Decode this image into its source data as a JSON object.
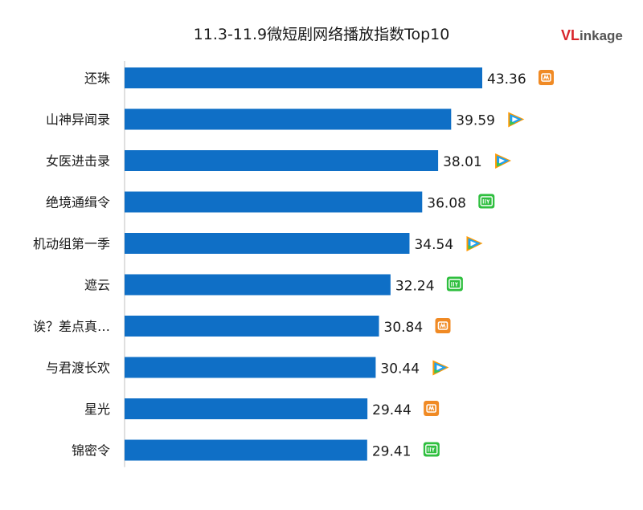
{
  "chart_data": {
    "type": "bar",
    "orientation": "horizontal",
    "title": "11.3-11.9微短剧网络播放指数Top10",
    "categories": [
      "还珠",
      "山神异闻录",
      "女医进击录",
      "绝境通缉令",
      "机动组第一季",
      "遮云",
      "诶？差点真…",
      "与君渡长欢",
      "星光",
      "锦密令"
    ],
    "values": [
      43.36,
      39.59,
      38.01,
      36.08,
      34.54,
      32.24,
      30.84,
      30.44,
      29.44,
      29.41
    ],
    "value_labels": [
      "43.36",
      "39.59",
      "38.01",
      "36.08",
      "34.54",
      "32.24",
      "30.84",
      "30.44",
      "29.44",
      "29.41"
    ],
    "platform_icons": [
      "mango-tv-icon",
      "tencent-video-icon",
      "tencent-video-icon",
      "iqiyi-icon",
      "tencent-video-icon",
      "iqiyi-icon",
      "mango-tv-icon",
      "tencent-video-icon",
      "mango-tv-icon",
      "iqiyi-icon"
    ],
    "bar_color": "#0f6fc6",
    "xlim": [
      0,
      60
    ],
    "grid": false,
    "legend": "none"
  },
  "brand": {
    "logo_text": "VLinkage"
  },
  "colors": {
    "mango": "#f08a24",
    "tencent_orange": "#ff9a00",
    "tencent_blue": "#1fa1f1",
    "tencent_green": "#35c35b",
    "iqiyi": "#2fbf3f"
  }
}
